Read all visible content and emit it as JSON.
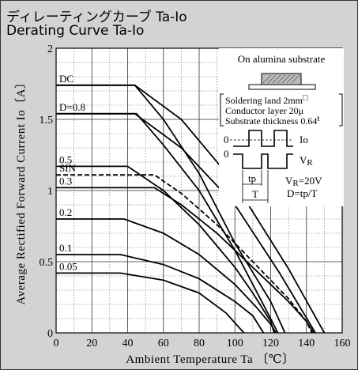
{
  "header": {
    "title_jp": "ディレーティングカーブ Ta-Io",
    "title_en": "Derating Curve Ta-Io"
  },
  "chart_data": {
    "type": "line",
    "title": "Derating Curve Ta-Io",
    "xlabel": "Ambient Temperature Ta 〔℃〕",
    "ylabel": "Average Rectified Forward Current Io〔A〕",
    "xlim": [
      0,
      160
    ],
    "ylim": [
      0,
      2
    ],
    "x_ticks": [
      "0",
      "20",
      "40",
      "60",
      "80",
      "100",
      "120",
      "140",
      "160"
    ],
    "y_ticks": [
      "0",
      "0.5",
      "1",
      "1.5",
      "2"
    ],
    "grid": true,
    "series": [
      {
        "name": "DC",
        "dashed": false,
        "points": [
          [
            0,
            1.74
          ],
          [
            44,
            1.74
          ],
          [
            60,
            1.5
          ],
          [
            80,
            1.12
          ],
          [
            100,
            0.63
          ],
          [
            120,
            0.22
          ],
          [
            128,
            0.0
          ]
        ]
      },
      {
        "name": "D=0.8",
        "dashed": false,
        "points": [
          [
            0,
            1.54
          ],
          [
            45,
            1.54
          ],
          [
            60,
            1.32
          ],
          [
            80,
            1.0
          ],
          [
            100,
            0.58
          ],
          [
            110,
            0.34
          ],
          [
            120,
            0.1
          ],
          [
            124,
            0.0
          ]
        ]
      },
      {
        "name": "0.5",
        "dashed": false,
        "points": [
          [
            0,
            1.17
          ],
          [
            40,
            1.17
          ],
          [
            60,
            1.0
          ],
          [
            80,
            0.76
          ],
          [
            100,
            0.46
          ],
          [
            110,
            0.28
          ],
          [
            120,
            0.08
          ],
          [
            122,
            0.0
          ]
        ]
      },
      {
        "name": "SIN",
        "dashed": true,
        "points": [
          [
            0,
            1.11
          ],
          [
            55,
            1.11
          ],
          [
            70,
            0.98
          ],
          [
            90,
            0.76
          ],
          [
            110,
            0.5
          ],
          [
            130,
            0.24
          ],
          [
            140,
            0.08
          ],
          [
            143,
            0.0
          ]
        ]
      },
      {
        "name": "0.3",
        "dashed": false,
        "points": [
          [
            0,
            1.02
          ],
          [
            55,
            1.02
          ],
          [
            70,
            0.9
          ],
          [
            90,
            0.7
          ],
          [
            110,
            0.46
          ],
          [
            130,
            0.22
          ],
          [
            140,
            0.08
          ],
          [
            144,
            0.0
          ]
        ]
      },
      {
        "name": "0.2",
        "dashed": false,
        "points": [
          [
            0,
            0.8
          ],
          [
            38,
            0.8
          ],
          [
            60,
            0.7
          ],
          [
            80,
            0.55
          ],
          [
            100,
            0.34
          ],
          [
            112,
            0.18
          ],
          [
            120,
            0.06
          ],
          [
            123,
            0.0
          ]
        ]
      },
      {
        "name": "0.1",
        "dashed": false,
        "points": [
          [
            0,
            0.55
          ],
          [
            36,
            0.55
          ],
          [
            60,
            0.48
          ],
          [
            80,
            0.38
          ],
          [
            100,
            0.22
          ],
          [
            110,
            0.12
          ],
          [
            116,
            0.0
          ]
        ]
      },
      {
        "name": "0.05",
        "dashed": false,
        "points": [
          [
            0,
            0.42
          ],
          [
            36,
            0.42
          ],
          [
            60,
            0.37
          ],
          [
            80,
            0.28
          ],
          [
            95,
            0.14
          ],
          [
            105,
            0.0
          ]
        ]
      },
      {
        "name": "",
        "dashed": false,
        "points": [
          [
            0,
            1.74
          ],
          [
            44,
            1.74
          ],
          [
            70,
            1.5
          ],
          [
            100,
            1.05
          ],
          [
            130,
            0.45
          ],
          [
            150,
            0.0
          ]
        ]
      },
      {
        "name": "",
        "dashed": false,
        "points": [
          [
            0,
            1.54
          ],
          [
            44,
            1.54
          ],
          [
            70,
            1.3
          ],
          [
            100,
            0.9
          ],
          [
            125,
            0.42
          ],
          [
            145,
            0.0
          ]
        ]
      }
    ],
    "inset": {
      "header": "On alumina substrate",
      "soldering_land": "Soldering land 2mm",
      "soldering_land_sup": "□",
      "conductor_layer": "Conductor layer 20μ",
      "substrate_thickness": "Substrate thickness 0.64",
      "substrate_thickness_sup": "t",
      "io_label": "Io",
      "vr_label": "V",
      "vr_sub": "R",
      "zero_1": "0",
      "zero_2": "0",
      "tp_label": "tp",
      "t_label": "T",
      "vr_value": "V",
      "vr_value_sub": "R",
      "vr_value_rest": "=20V",
      "duty_def": "D=tp/T"
    }
  }
}
